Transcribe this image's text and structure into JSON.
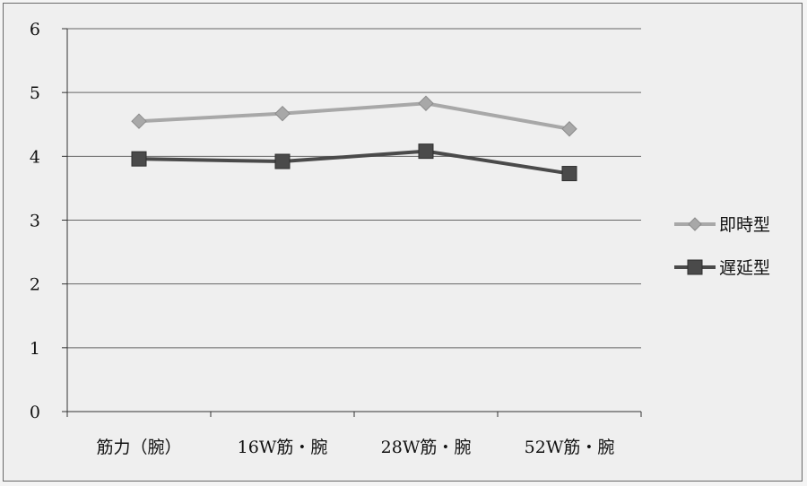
{
  "chart_data": {
    "type": "line",
    "categories": [
      "筋力（腕）",
      "16W筋・腕",
      "28W筋・腕",
      "52W筋・腕"
    ],
    "series": [
      {
        "name": "即時型",
        "values": [
          4.55,
          4.67,
          4.83,
          4.43
        ],
        "color": "#a8a8a8",
        "marker": "diamond"
      },
      {
        "name": "遅延型",
        "values": [
          3.96,
          3.92,
          4.08,
          3.73
        ],
        "color": "#4a4a4a",
        "marker": "square"
      }
    ],
    "ylim": [
      0,
      6
    ],
    "yticks": [
      0,
      1,
      2,
      3,
      4,
      5,
      6
    ],
    "grid": true,
    "legend": "right",
    "title": "",
    "xlabel": "",
    "ylabel": ""
  }
}
